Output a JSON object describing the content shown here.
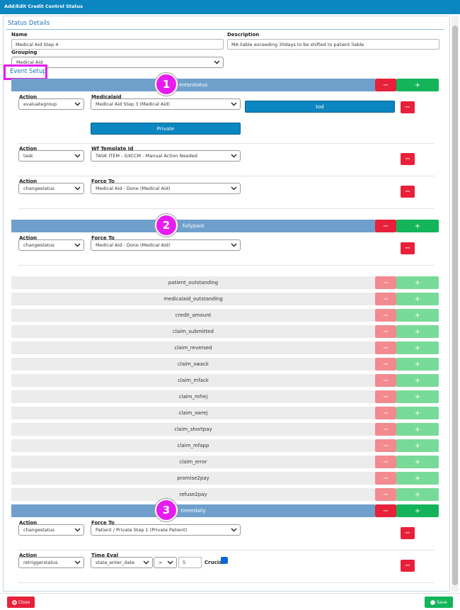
{
  "header": {
    "title": "Add/Edit Credit Control Status"
  },
  "status_details": {
    "title": "Status Details",
    "name_label": "Name",
    "name_value": "Medical Aid Step 4",
    "description_label": "Description",
    "description_value": "MA liable exceeding 30days to be shifted to patient liable",
    "grouping_label": "Grouping",
    "grouping_value": "Medical Aid"
  },
  "event_setup": {
    "title": "Event Setup",
    "remove_symbol": "−",
    "add_symbol": "+",
    "events": [
      {
        "name": "enterstatus",
        "badge": "1",
        "actions": [
          {
            "fields": [
              {
                "label": "Action",
                "value": "evaluategroup"
              },
              {
                "label": "Medicalaid",
                "value": "Medical Aid Step 3 (Medical Aid)"
              }
            ],
            "side_button": "tod",
            "below_button": "Private"
          },
          {
            "fields": [
              {
                "label": "Action",
                "value": "task"
              },
              {
                "label": "Wf Template Id",
                "value": "TASK ITEM - GXCCM - Manual Action Needed"
              }
            ]
          },
          {
            "fields": [
              {
                "label": "Action",
                "value": "changestatus"
              },
              {
                "label": "Force To",
                "value": "Medical Aid - Done (Medical Aid)"
              }
            ]
          }
        ]
      },
      {
        "name": "fullypaid",
        "badge": "2",
        "actions": [
          {
            "fields": [
              {
                "label": "Action",
                "value": "changestatus"
              },
              {
                "label": "Force To",
                "value": "Medical Aid - Done (Medical Aid)"
              }
            ]
          }
        ]
      },
      {
        "name": "patient_outstanding"
      },
      {
        "name": "medicalaid_outstanding"
      },
      {
        "name": "credit_amount"
      },
      {
        "name": "claim_submitted"
      },
      {
        "name": "claim_reversed"
      },
      {
        "name": "claim_swack"
      },
      {
        "name": "claim_mfack"
      },
      {
        "name": "claim_mfrej"
      },
      {
        "name": "claim_swrej"
      },
      {
        "name": "claim_shortpay"
      },
      {
        "name": "claim_mfapp"
      },
      {
        "name": "claim_error"
      },
      {
        "name": "promise2pay"
      },
      {
        "name": "refuse2pay"
      },
      {
        "name": "timerdaily",
        "badge": "3",
        "actions": [
          {
            "fields": [
              {
                "label": "Action",
                "value": "changestatus"
              },
              {
                "label": "Force To",
                "value": "Patient / Private Step 1 (Private Patient)"
              }
            ]
          },
          {
            "fields": [
              {
                "label": "Action",
                "value": "retriggerstatus"
              },
              {
                "label": "Time Eval",
                "value": "state_enter_date"
              }
            ],
            "operator": ">",
            "amount": "5",
            "crucial_label": "Crucial",
            "crucial_checked": true
          }
        ]
      }
    ]
  },
  "footer": {
    "close": "Close",
    "save": "Save"
  }
}
